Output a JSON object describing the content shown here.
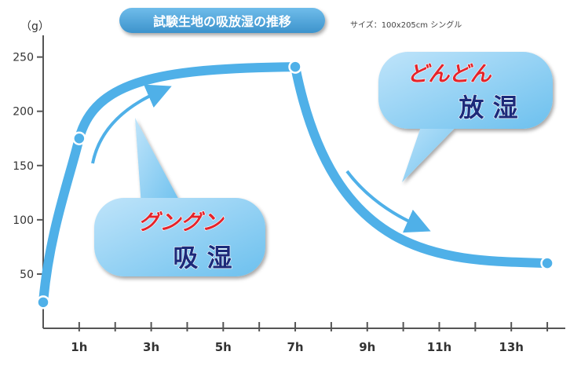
{
  "chart_data": {
    "type": "line",
    "title": "試験生地の吸放湿の推移",
    "subtitle": "サイズ：100x205cm シングル",
    "ylabel": "（g）",
    "xlabel": "",
    "x_ticks": [
      "1h",
      "3h",
      "5h",
      "7h",
      "9h",
      "11h",
      "13h"
    ],
    "y_ticks": [
      50,
      100,
      150,
      200,
      250
    ],
    "xlim": [
      0,
      14.5
    ],
    "ylim": [
      0,
      270
    ],
    "grid": false,
    "series": [
      {
        "x": [
          0,
          1,
          7,
          14
        ],
        "y": [
          24,
          175,
          241,
          60
        ],
        "color": "#4fb0e8"
      }
    ],
    "annotations": [
      {
        "name": "absorb",
        "line1": "グングン",
        "line2": "吸 湿",
        "line1_color": "#e4242b",
        "line2_color": "#1c2a7a"
      },
      {
        "name": "release",
        "line1": "どんどん",
        "line2": "放 湿",
        "line1_color": "#e4242b",
        "line2_color": "#1c2a7a"
      }
    ],
    "colors": {
      "line": "#4fb0e8",
      "marker_stroke": "#ffffff",
      "axis": "#555555",
      "title_bg": "#4aa3da"
    }
  }
}
